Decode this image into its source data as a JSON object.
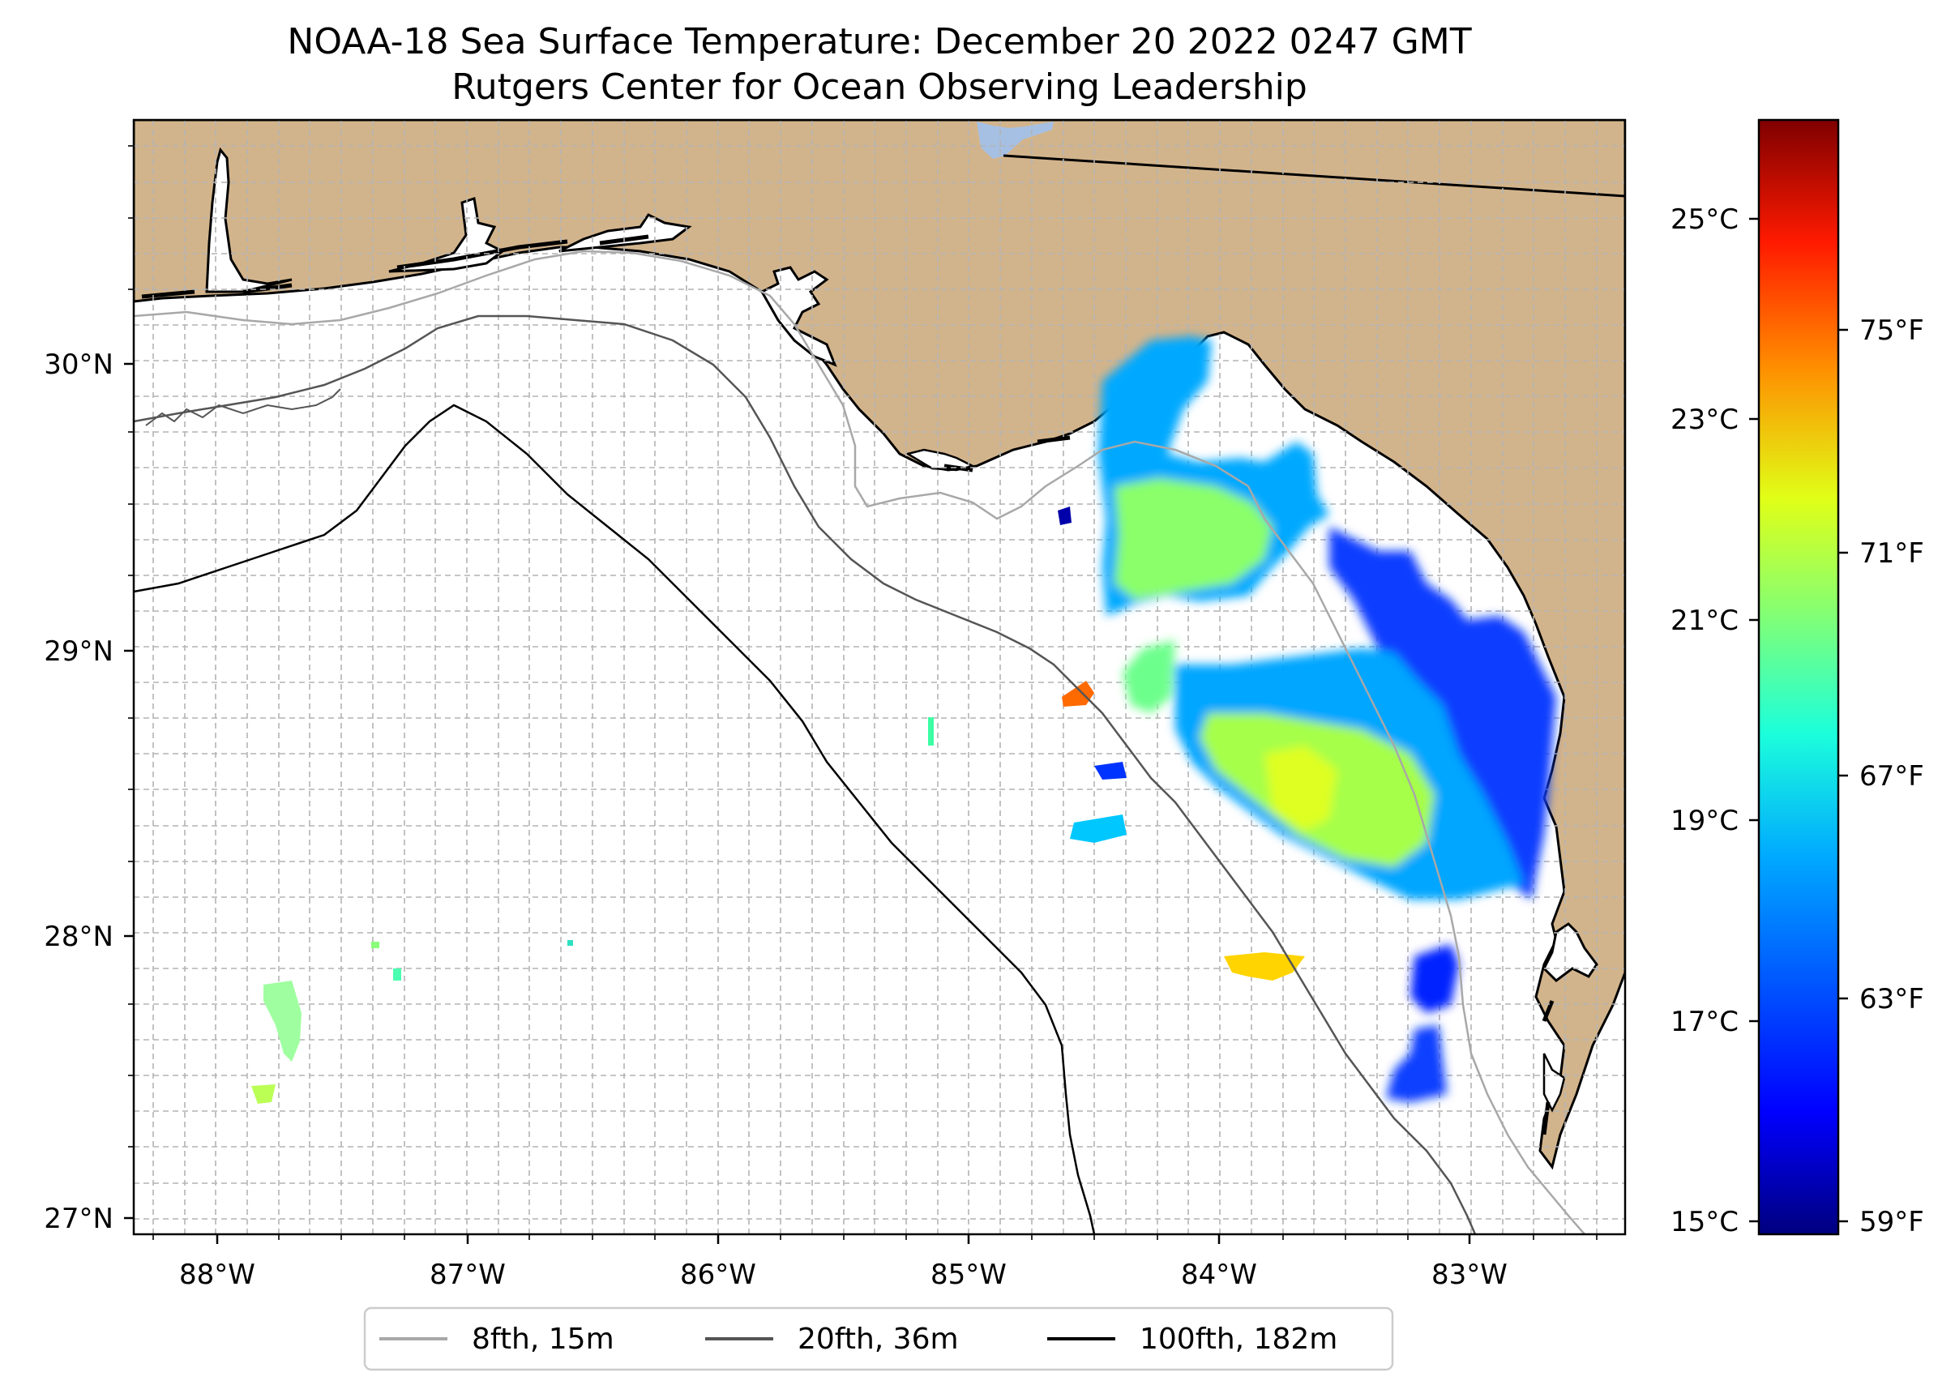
{
  "title": {
    "line1": "NOAA-18 Sea Surface Temperature: December 20 2022 0247 GMT",
    "line2": "Rutgers Center for Ocean Observing Leadership"
  },
  "map": {
    "lon_range": [
      -88.33,
      -82.4
    ],
    "lat_range": [
      26.95,
      30.85
    ],
    "lat_ticks": [
      {
        "value": 30,
        "label": "30°N"
      },
      {
        "value": 29,
        "label": "29°N"
      },
      {
        "value": 28,
        "label": "28°N"
      },
      {
        "value": 27,
        "label": "27°N"
      }
    ],
    "lon_ticks": [
      {
        "value": -88,
        "label": "88°W"
      },
      {
        "value": -87,
        "label": "87°W"
      },
      {
        "value": -86,
        "label": "86°W"
      },
      {
        "value": -85,
        "label": "85°W"
      },
      {
        "value": -84,
        "label": "84°W"
      },
      {
        "value": -83,
        "label": "83°W"
      }
    ],
    "colors": {
      "land": "#d2b48c",
      "ocean": "#ffffff",
      "gridline": "#b4b4b4",
      "coastline": "#000000",
      "lake": "#a6c0e4"
    }
  },
  "colorbar": {
    "celsius_range": [
      14.8,
      26.0
    ],
    "celsius_ticks": [
      {
        "value": 25,
        "label": "25°C"
      },
      {
        "value": 23,
        "label": "23°C"
      },
      {
        "value": 21,
        "label": "21°C"
      },
      {
        "value": 19,
        "label": "19°C"
      },
      {
        "value": 17,
        "label": "17°C"
      },
      {
        "value": 15,
        "label": "15°C"
      }
    ],
    "fahrenheit_ticks": [
      {
        "value": 75,
        "label": "75°F"
      },
      {
        "value": 71,
        "label": "71°F"
      },
      {
        "value": 67,
        "label": "67°F"
      },
      {
        "value": 63,
        "label": "63°F"
      },
      {
        "value": 59,
        "label": "59°F"
      }
    ],
    "colormap": [
      "#00007f",
      "#0000ff",
      "#007fff",
      "#00e5ff",
      "#4dff9a",
      "#aaff4d",
      "#ffe600",
      "#ff7f00",
      "#ff1a00",
      "#7f0000"
    ]
  },
  "legend": {
    "entries": [
      {
        "label": "8fth, 15m",
        "color": "#a8a8a8"
      },
      {
        "label": "20fth, 36m",
        "color": "#555555"
      },
      {
        "label": "100fth, 182m",
        "color": "#000000"
      }
    ]
  }
}
